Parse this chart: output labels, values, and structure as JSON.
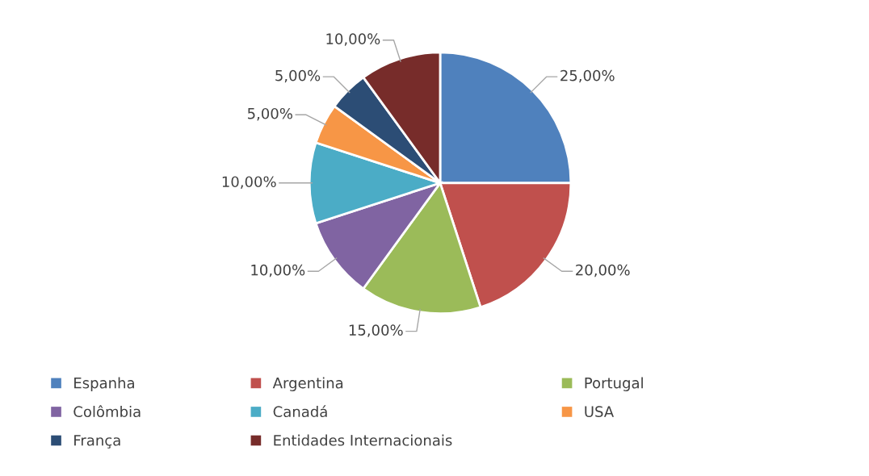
{
  "chart_data": {
    "type": "pie",
    "categories": [
      "Espanha",
      "Argentina",
      "Portugal",
      "Colômbia",
      "Canadá",
      "USA",
      "França",
      "Entidades Internacionais"
    ],
    "values": [
      25,
      20,
      15,
      10,
      10,
      5,
      5,
      10
    ],
    "value_labels": [
      "25,00%",
      "20,00%",
      "15,00%",
      "10,00%",
      "10,00%",
      "5,00%",
      "5,00%",
      "10,00%"
    ],
    "colors": [
      "#4f81bd",
      "#c0504d",
      "#9bbb59",
      "#8064a2",
      "#4bacc6",
      "#f79646",
      "#2c4d75",
      "#772c2a"
    ],
    "legend": "bottom"
  }
}
